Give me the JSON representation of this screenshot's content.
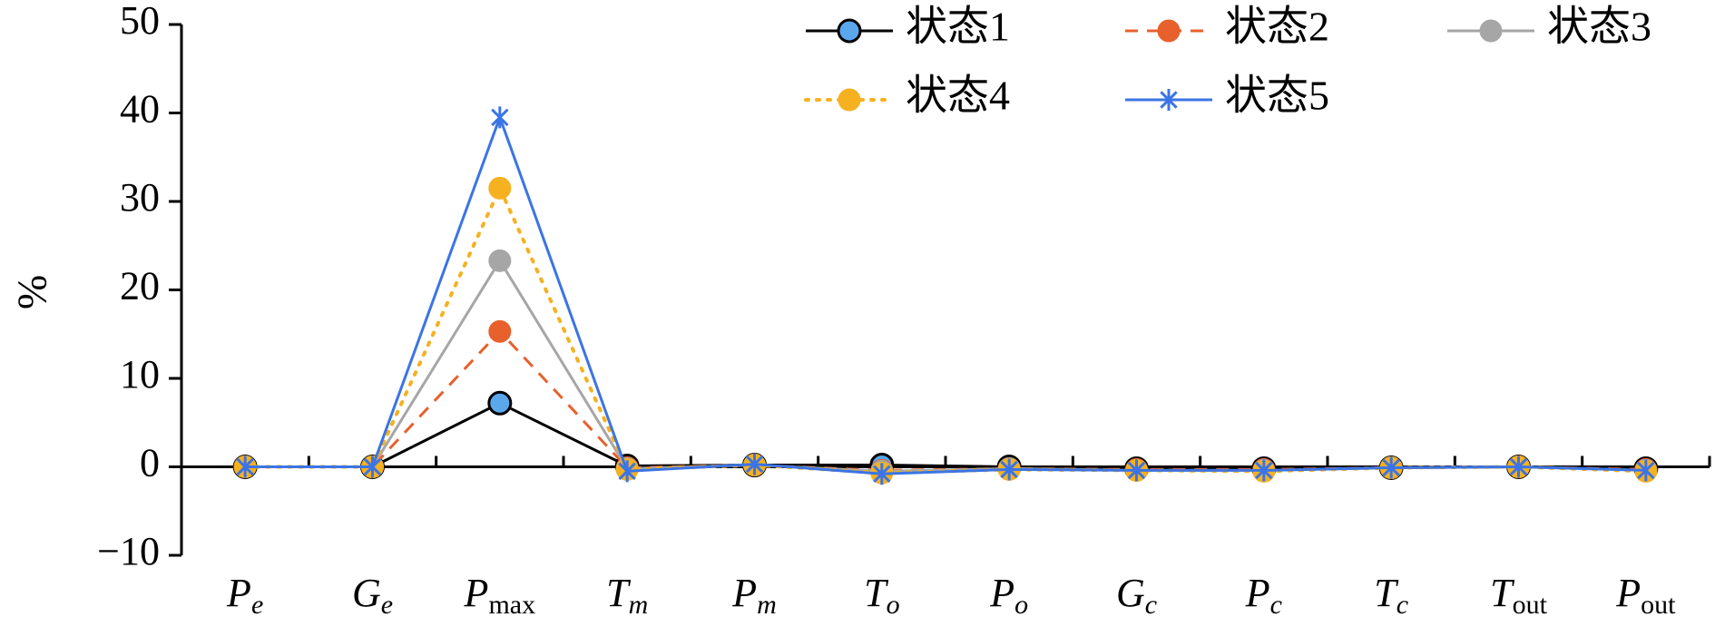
{
  "chart_data": {
    "type": "line",
    "ylabel": "%",
    "ylim": [
      -10,
      50
    ],
    "yticks": [
      -10,
      0,
      10,
      20,
      30,
      40,
      50
    ],
    "categories": [
      {
        "main": "P",
        "sub": "e",
        "sub_italic": true
      },
      {
        "main": "G",
        "sub": "e",
        "sub_italic": true
      },
      {
        "main": "P",
        "sub": "max",
        "sub_italic": false
      },
      {
        "main": "T",
        "sub": "m",
        "sub_italic": true
      },
      {
        "main": "P",
        "sub": "m",
        "sub_italic": true
      },
      {
        "main": "T",
        "sub": "o",
        "sub_italic": true
      },
      {
        "main": "P",
        "sub": "o",
        "sub_italic": true
      },
      {
        "main": "G",
        "sub": "c",
        "sub_italic": true
      },
      {
        "main": "P",
        "sub": "c",
        "sub_italic": true
      },
      {
        "main": "T",
        "sub": "c",
        "sub_italic": true
      },
      {
        "main": "T",
        "sub": "out",
        "sub_italic": false
      },
      {
        "main": "P",
        "sub": "out",
        "sub_italic": false
      }
    ],
    "series": [
      {
        "name": "状态1",
        "color": "#000000",
        "marker_fill": "#5aa7ec",
        "dash": "solid",
        "marker": "circle",
        "values": [
          0,
          0,
          7.2,
          0.1,
          0.2,
          0.2,
          0,
          -0.2,
          -0.2,
          -0.1,
          0,
          -0.2
        ]
      },
      {
        "name": "状态2",
        "color": "#e8602c",
        "marker_fill": "#e8602c",
        "dash": "dashed",
        "marker": "circle",
        "values": [
          0,
          0,
          15.3,
          -0.1,
          0.2,
          -0.4,
          -0.2,
          -0.3,
          -0.3,
          -0.1,
          0,
          -0.3
        ]
      },
      {
        "name": "状态3",
        "color": "#a6a6a6",
        "marker_fill": "#a6a6a6",
        "dash": "solid",
        "marker": "circle",
        "values": [
          0,
          0,
          23.3,
          -0.2,
          0.2,
          -0.5,
          -0.2,
          -0.4,
          -0.4,
          -0.1,
          0,
          -0.4
        ]
      },
      {
        "name": "状态4",
        "color": "#f5b120",
        "marker_fill": "#f5b120",
        "dash": "dotted",
        "marker": "circle",
        "values": [
          0,
          0,
          31.5,
          -0.3,
          0.2,
          -0.7,
          -0.3,
          -0.4,
          -0.5,
          -0.1,
          0,
          -0.5
        ]
      },
      {
        "name": "状态5",
        "color": "#3b74e6",
        "marker_fill": "#3b74e6",
        "dash": "solid",
        "marker": "star",
        "values": [
          0,
          0,
          39.5,
          -0.5,
          0.3,
          -0.8,
          -0.3,
          -0.4,
          -0.4,
          -0.1,
          0,
          -0.4
        ]
      }
    ],
    "legend_position": "top-right"
  }
}
